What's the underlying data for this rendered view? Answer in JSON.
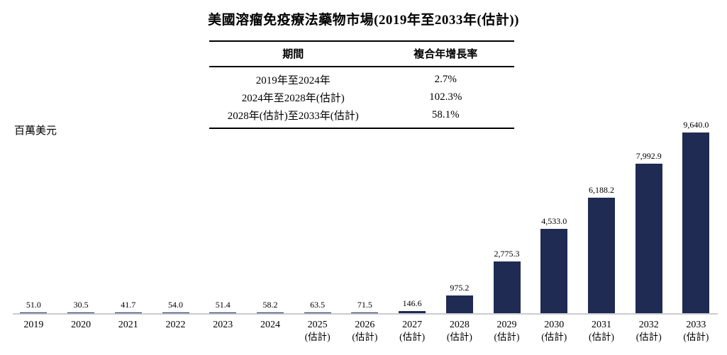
{
  "title": "美國溶瘤免疫療法藥物市場(2019年至2033年(估計))",
  "y_axis_unit": "百萬美元",
  "table": {
    "headers": [
      "期間",
      "複合年增長率"
    ],
    "rows": [
      {
        "period": "2019年至2024年",
        "cagr": "2.7%"
      },
      {
        "period": "2024年至2028年(估計)",
        "cagr": "102.3%"
      },
      {
        "period": "2028年(估計)至2033年(估計)",
        "cagr": "58.1%"
      }
    ]
  },
  "chart_data": {
    "type": "bar",
    "title": "美國溶瘤免疫療法藥物市場(2019年至2033年(估計))",
    "ylabel": "百萬美元",
    "ylim": [
      0,
      9640
    ],
    "grid": false,
    "legend": "none",
    "bar_color": "#1f2b52",
    "axis_line_color": "#c9ccd3",
    "categories": [
      "2019",
      "2020",
      "2021",
      "2022",
      "2023",
      "2024",
      "2025",
      "2026",
      "2027",
      "2028",
      "2029",
      "2030",
      "2031",
      "2032",
      "2033"
    ],
    "category_sublabels": [
      "",
      "",
      "",
      "",
      "",
      "",
      "(估計)",
      "(估計)",
      "(估計)",
      "(估計)",
      "(估計)",
      "(估計)",
      "(估計)",
      "(估計)",
      "(估計)"
    ],
    "values": [
      51.0,
      30.5,
      41.7,
      54.0,
      51.4,
      58.2,
      63.5,
      71.5,
      146.6,
      975.2,
      2775.3,
      4533.0,
      6188.2,
      7992.9,
      9640.0
    ],
    "value_labels": [
      "51.0",
      "30.5",
      "41.7",
      "54.0",
      "51.4",
      "58.2",
      "63.5",
      "71.5",
      "146.6",
      "975.2",
      "2,775.3",
      "4,533.0",
      "6,188.2",
      "7,992.9",
      "9,640.0"
    ]
  }
}
